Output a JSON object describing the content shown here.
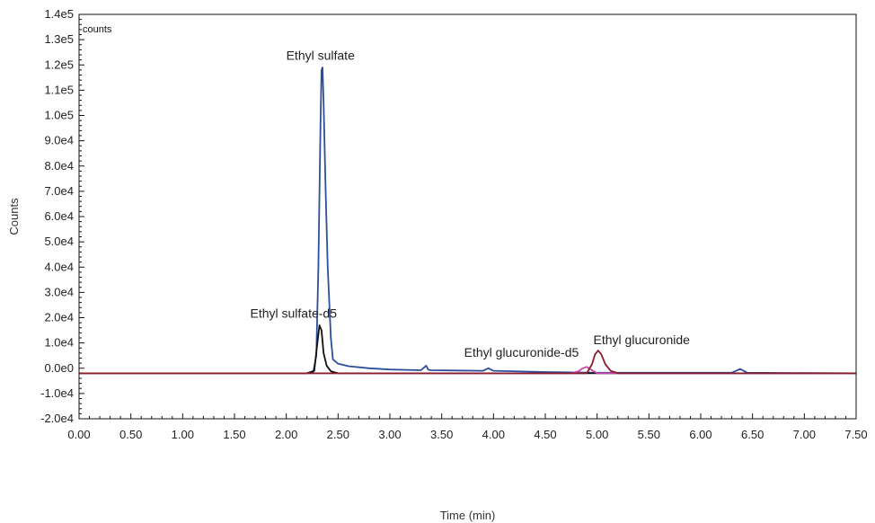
{
  "chart_data": {
    "type": "line",
    "title": "",
    "xlabel": "Time (min)",
    "ylabel": "Counts",
    "unit_label": "counts",
    "xlim": [
      0,
      7.5
    ],
    "ylim": [
      -20000,
      140000
    ],
    "grid": false,
    "x_ticks": [
      0,
      0.5,
      1.0,
      1.5,
      2.0,
      2.5,
      3.0,
      3.5,
      4.0,
      4.5,
      5.0,
      5.5,
      6.0,
      6.5,
      7.0,
      7.5
    ],
    "x_tick_labels": [
      "0.00",
      "0.50",
      "1.00",
      "1.50",
      "2.00",
      "2.50",
      "3.00",
      "3.50",
      "4.00",
      "4.50",
      "5.00",
      "5.50",
      "6.00",
      "6.50",
      "7.00",
      "7.50"
    ],
    "y_ticks": [
      -20000,
      -10000,
      0,
      10000,
      20000,
      30000,
      40000,
      50000,
      60000,
      70000,
      80000,
      90000,
      100000,
      110000,
      120000,
      130000,
      140000
    ],
    "y_tick_labels": [
      "-2.0e4",
      "-1.0e4",
      "0.0e0",
      "1.0e4",
      "2.0e4",
      "3.0e4",
      "4.0e4",
      "5.0e4",
      "6.0e4",
      "7.0e4",
      "8.0e4",
      "9.0e4",
      "1.0e5",
      "1.1e5",
      "1.2e5",
      "1.3e5",
      "1.4e5"
    ],
    "series": [
      {
        "color": "#2c4e9c",
        "x": [
          0,
          2.2,
          2.26,
          2.29,
          2.31,
          2.33,
          2.34,
          2.35,
          2.36,
          2.38,
          2.4,
          2.43,
          2.45,
          2.5,
          2.6,
          2.8,
          3.0,
          3.3,
          3.35,
          3.37,
          3.4,
          3.9,
          3.95,
          4.0,
          4.5,
          5.0,
          6.3,
          6.38,
          6.45,
          7.5
        ],
        "y": [
          -2000,
          -2000,
          -1500,
          5000,
          40000,
          95000,
          118000,
          119000,
          105000,
          70000,
          40000,
          12000,
          3500,
          1800,
          800,
          0,
          -500,
          -800,
          1000,
          -600,
          -800,
          -1000,
          0,
          -1000,
          -1500,
          -1800,
          -1800,
          -300,
          -1800,
          -2000
        ]
      },
      {
        "color": "#111111",
        "x": [
          0,
          2.2,
          2.27,
          2.3,
          2.32,
          2.34,
          2.36,
          2.39,
          2.43,
          2.5,
          7.5
        ],
        "y": [
          -2000,
          -2000,
          -1000,
          10000,
          17000,
          15000,
          6000,
          1000,
          -1200,
          -2000,
          -2000
        ]
      },
      {
        "color": "#cc44aa",
        "x": [
          0,
          4.75,
          4.82,
          4.86,
          4.9,
          4.94,
          5.0,
          7.5
        ],
        "y": [
          -2000,
          -2000,
          -1200,
          0,
          500,
          -500,
          -2000,
          -2000
        ]
      },
      {
        "color": "#8b1c2c",
        "x": [
          0,
          4.9,
          4.95,
          4.98,
          5.01,
          5.04,
          5.08,
          5.13,
          5.2,
          7.5
        ],
        "y": [
          -2000,
          -2000,
          1500,
          5500,
          7000,
          5500,
          1500,
          -1000,
          -2000,
          -2000
        ]
      }
    ],
    "annotations": [
      {
        "text": "Ethyl sulfate",
        "x": 2.33,
        "y": 122000
      },
      {
        "text": "Ethyl sulfate-d5",
        "x": 2.07,
        "y": 20000
      },
      {
        "text": "Ethyl glucuronide-d5",
        "x": 4.27,
        "y": 4500
      },
      {
        "text": "Ethyl glucuronide",
        "x": 5.43,
        "y": 9500
      }
    ]
  }
}
